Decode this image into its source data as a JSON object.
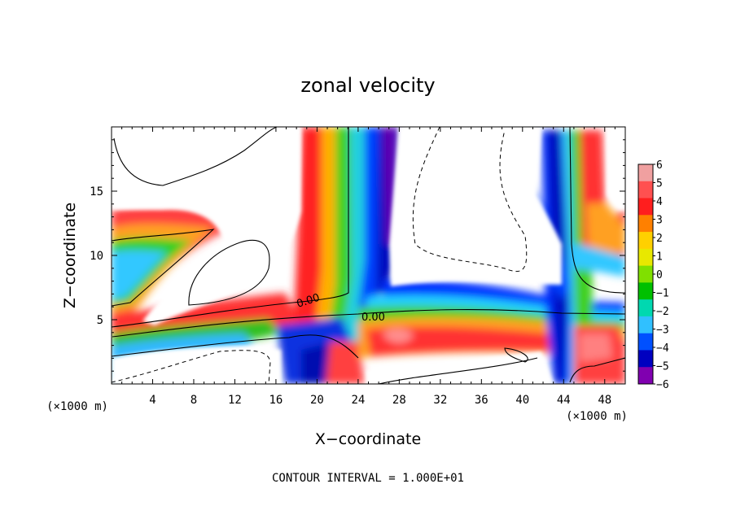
{
  "chart_data": {
    "type": "heatmap",
    "title": "zonal velocity",
    "xlabel": "X−coordinate",
    "ylabel": "Z−coordinate",
    "x_unit_label": "(×1000 m)",
    "x_unit_label_right": "(×1000 m)",
    "xlim": [
      0,
      50
    ],
    "ylim": [
      0,
      20
    ],
    "x_ticks": [
      "4",
      "8",
      "12",
      "16",
      "20",
      "24",
      "28",
      "32",
      "36",
      "40",
      "44",
      "48"
    ],
    "x_tick_values": [
      4,
      8,
      12,
      16,
      20,
      24,
      28,
      32,
      36,
      40,
      44,
      48
    ],
    "y_ticks": [
      "5",
      "10",
      "15"
    ],
    "y_tick_values": [
      5,
      10,
      15
    ],
    "contour_labels": [
      "0.00",
      "0.00"
    ],
    "footer": "CONTOUR INTERVAL = 1.000E+01",
    "colorbar": {
      "labels": [
        "6",
        "5",
        "4",
        "3",
        "2",
        "1",
        "0",
        "−1",
        "−2",
        "−3",
        "−4",
        "−5",
        "−6"
      ],
      "values": [
        6,
        5,
        4,
        3,
        2,
        1,
        0,
        -1,
        -2,
        -3,
        -4,
        -5,
        -6
      ],
      "colors": [
        "#f0a0a0",
        "#ff5050",
        "#ff1e1e",
        "#ff8000",
        "#ffd000",
        "#e8e800",
        "#80e000",
        "#00c000",
        "#00d8b0",
        "#30c0ff",
        "#0050ff",
        "#0000c0",
        "#8000b0"
      ]
    },
    "grid": false,
    "legend": "colorbar-right"
  }
}
